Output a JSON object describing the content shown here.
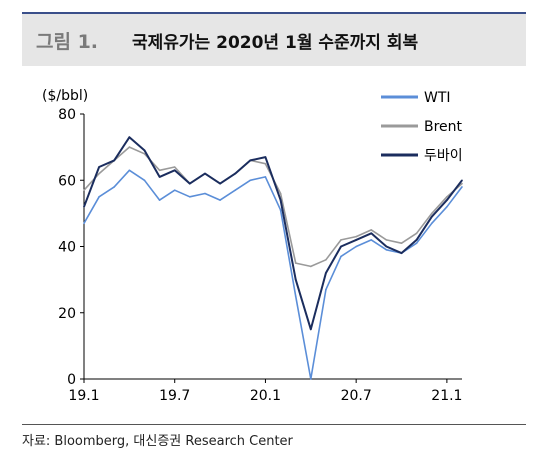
{
  "figure_label": "그림 1.",
  "figure_title": "국제유가는 2020년 1월 수준까지 회복",
  "source": "자료: Bloomberg, 대신증권 Research Center",
  "colors": {
    "WTI": "#5b8ed8",
    "Brent": "#9a9a9a",
    "Dubai": "#1b2d5e",
    "accent": "#3a4f8a"
  },
  "chart_data": {
    "type": "line",
    "title": "",
    "ylabel": "($/bbl)",
    "xlabel": "",
    "ylim": [
      0,
      80
    ],
    "yticks": [
      "0",
      "20",
      "40",
      "60",
      "80"
    ],
    "xticks": [
      "19.1",
      "19.7",
      "20.1",
      "20.7",
      "21.1"
    ],
    "grid": false,
    "legend_position": "top-right",
    "x": [
      "19.1",
      "19.2",
      "19.3",
      "19.4",
      "19.5",
      "19.6",
      "19.7",
      "19.8",
      "19.9",
      "19.10",
      "19.11",
      "19.12",
      "20.1",
      "20.2",
      "20.3",
      "20.4",
      "20.5",
      "20.6",
      "20.7",
      "20.8",
      "20.9",
      "20.10",
      "20.11",
      "20.12",
      "21.1",
      "21.2"
    ],
    "series": [
      {
        "name": "WTI",
        "values": [
          47,
          55,
          58,
          63,
          60,
          54,
          57,
          55,
          56,
          54,
          57,
          60,
          61,
          51,
          25,
          0,
          27,
          37,
          40,
          42,
          39,
          38,
          41,
          47,
          52,
          58
        ]
      },
      {
        "name": "Brent",
        "values": [
          57,
          62,
          66,
          70,
          68,
          63,
          64,
          59,
          62,
          59,
          62,
          66,
          65,
          56,
          35,
          34,
          36,
          42,
          43,
          45,
          42,
          41,
          44,
          50,
          55,
          59
        ]
      },
      {
        "name": "두바이",
        "values": [
          52,
          64,
          66,
          73,
          69,
          61,
          63,
          59,
          62,
          59,
          62,
          66,
          67,
          54,
          30,
          15,
          32,
          40,
          42,
          44,
          40,
          38,
          42,
          49,
          54,
          60
        ]
      }
    ]
  }
}
